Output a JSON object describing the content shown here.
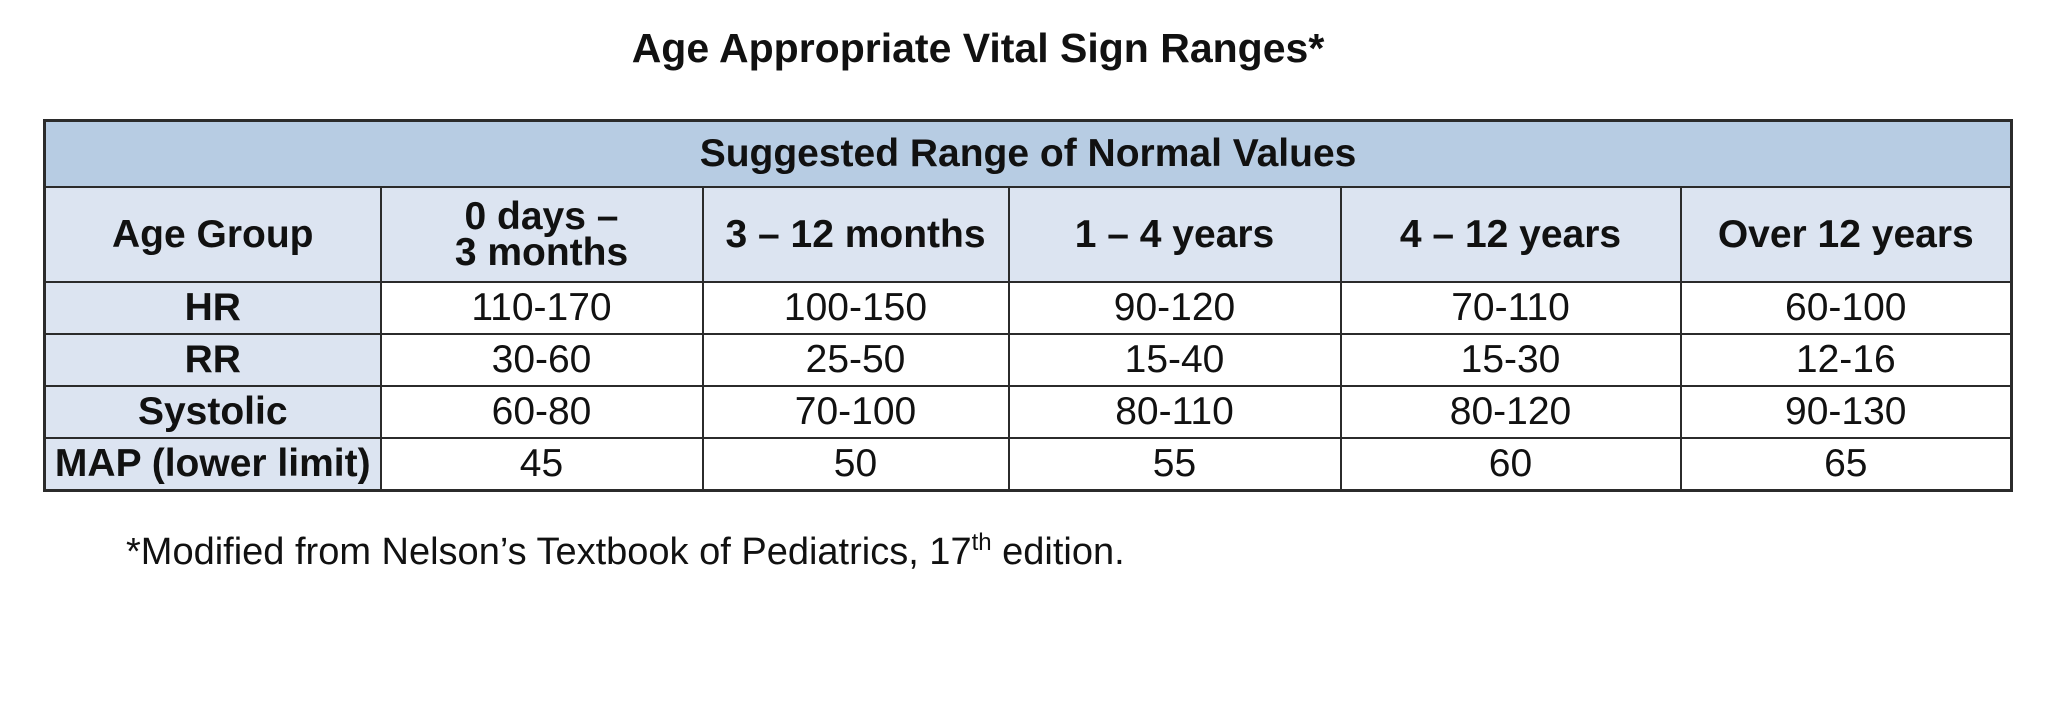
{
  "title": "Age Appropriate Vital Sign Ranges*",
  "table": {
    "group_header": "Suggested Range of Normal Values",
    "row_label_header": "Age Group",
    "columns": [
      {
        "lines": [
          "0 days –",
          "3 months"
        ]
      },
      {
        "lines": [
          "3 – 12 months"
        ]
      },
      {
        "lines": [
          "1 – 4 years"
        ]
      },
      {
        "lines": [
          "4 – 12 years"
        ]
      },
      {
        "lines": [
          "Over 12 years"
        ]
      }
    ],
    "rows": [
      {
        "label": "HR",
        "values": [
          "110-170",
          "100-150",
          "90-120",
          "70-110",
          "60-100"
        ]
      },
      {
        "label": "RR",
        "values": [
          "30-60",
          "25-50",
          "15-40",
          "15-30",
          "12-16"
        ]
      },
      {
        "label": "Systolic",
        "values": [
          "60-80",
          "70-100",
          "80-110",
          "80-120",
          "90-130"
        ]
      },
      {
        "label": "MAP (lower limit)",
        "values": [
          "45",
          "50",
          "55",
          "60",
          "65"
        ]
      }
    ]
  },
  "footnote": {
    "prefix": "*Modified from Nelson’s Textbook of Pediatrics, 17",
    "superscript": "th",
    "suffix": " edition."
  }
}
